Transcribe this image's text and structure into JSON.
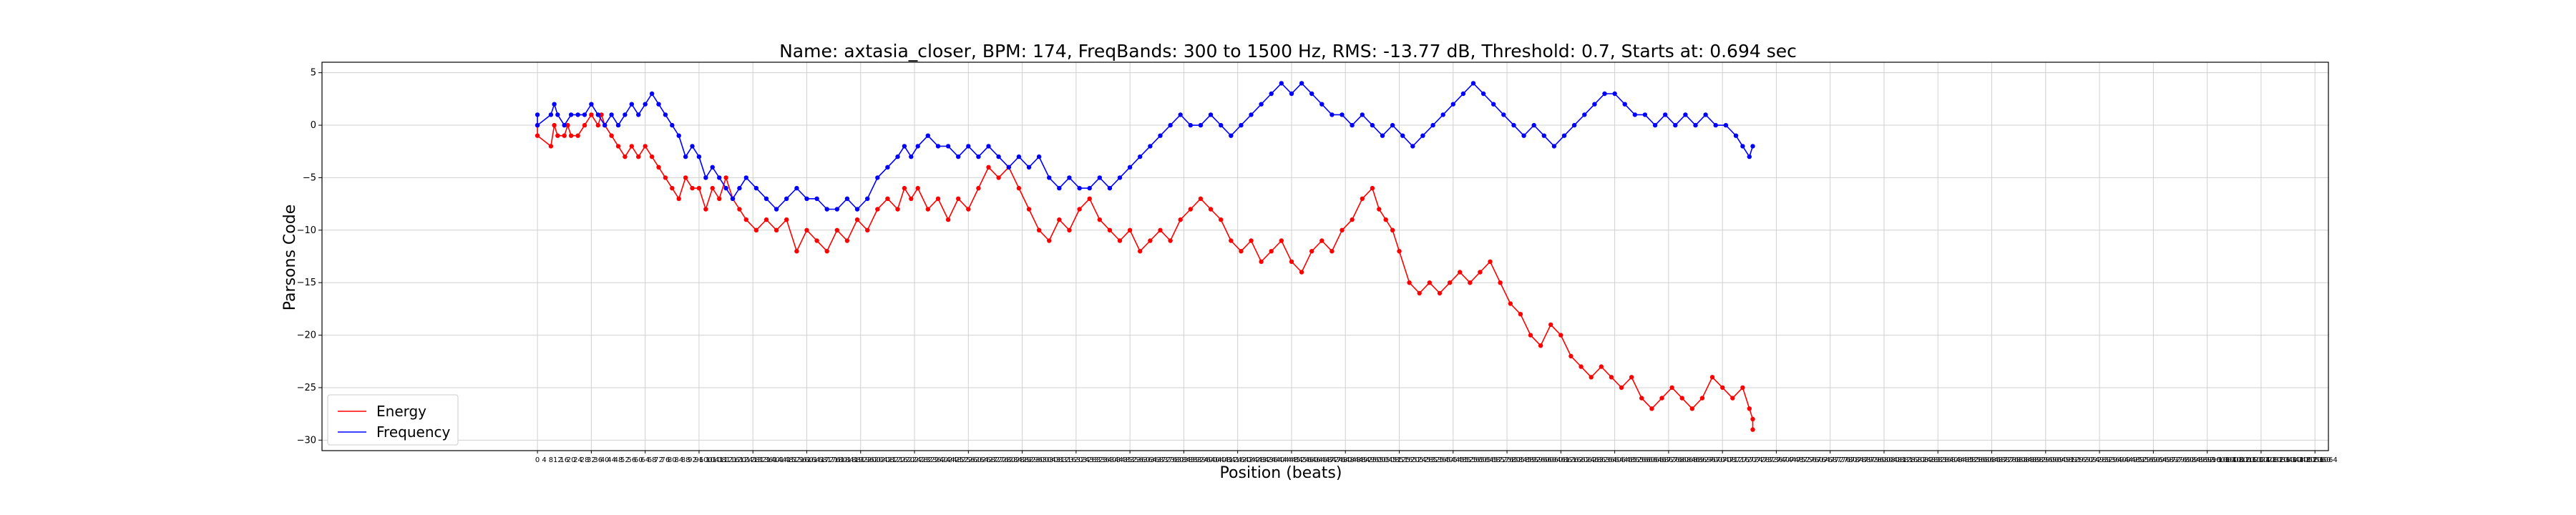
{
  "chart_data": {
    "type": "line",
    "title": "Name: axtasia_closer, BPM: 174, FreqBands: 300 to 1500 Hz, RMS: -13.77 dB, Threshold: 0.7, Starts at: 0.694 sec",
    "xlabel": "Position (beats)",
    "ylabel": "Parsons Code",
    "xlim": [
      -128,
      1064
    ],
    "ylim": [
      -31,
      6
    ],
    "xtick_step": 4,
    "xtick_labels_from": 0,
    "xtick_labels_to": 1064,
    "yticks": [
      5,
      0,
      -5,
      -10,
      -15,
      -20,
      -25,
      -30
    ],
    "grid": true,
    "legend_position": "lower-left",
    "series": [
      {
        "name": "Energy",
        "color": "#ff0000",
        "points": [
          [
            0,
            0
          ],
          [
            0,
            -1
          ],
          [
            8,
            -2
          ],
          [
            10,
            0
          ],
          [
            12,
            -1
          ],
          [
            16,
            -1
          ],
          [
            18,
            0
          ],
          [
            20,
            -1
          ],
          [
            24,
            -1
          ],
          [
            28,
            0
          ],
          [
            32,
            1
          ],
          [
            36,
            0
          ],
          [
            38,
            1
          ],
          [
            40,
            0
          ],
          [
            44,
            -1
          ],
          [
            48,
            -2
          ],
          [
            52,
            -3
          ],
          [
            56,
            -2
          ],
          [
            60,
            -3
          ],
          [
            64,
            -2
          ],
          [
            68,
            -3
          ],
          [
            72,
            -4
          ],
          [
            76,
            -5
          ],
          [
            80,
            -6
          ],
          [
            84,
            -7
          ],
          [
            88,
            -5
          ],
          [
            92,
            -6
          ],
          [
            96,
            -6
          ],
          [
            100,
            -8
          ],
          [
            104,
            -6
          ],
          [
            108,
            -7
          ],
          [
            112,
            -5
          ],
          [
            116,
            -7
          ],
          [
            120,
            -8
          ],
          [
            124,
            -9
          ],
          [
            130,
            -10
          ],
          [
            136,
            -9
          ],
          [
            142,
            -10
          ],
          [
            148,
            -9
          ],
          [
            154,
            -12
          ],
          [
            160,
            -10
          ],
          [
            166,
            -11
          ],
          [
            172,
            -12
          ],
          [
            178,
            -10
          ],
          [
            184,
            -11
          ],
          [
            190,
            -9
          ],
          [
            196,
            -10
          ],
          [
            202,
            -8
          ],
          [
            208,
            -7
          ],
          [
            214,
            -8
          ],
          [
            218,
            -6
          ],
          [
            222,
            -7
          ],
          [
            226,
            -6
          ],
          [
            232,
            -8
          ],
          [
            238,
            -7
          ],
          [
            244,
            -9
          ],
          [
            250,
            -7
          ],
          [
            256,
            -8
          ],
          [
            262,
            -6
          ],
          [
            268,
            -4
          ],
          [
            274,
            -5
          ],
          [
            280,
            -4
          ],
          [
            286,
            -6
          ],
          [
            292,
            -8
          ],
          [
            298,
            -10
          ],
          [
            304,
            -11
          ],
          [
            310,
            -9
          ],
          [
            316,
            -10
          ],
          [
            322,
            -8
          ],
          [
            328,
            -7
          ],
          [
            334,
            -9
          ],
          [
            340,
            -10
          ],
          [
            346,
            -11
          ],
          [
            352,
            -10
          ],
          [
            358,
            -12
          ],
          [
            364,
            -11
          ],
          [
            370,
            -10
          ],
          [
            376,
            -11
          ],
          [
            382,
            -9
          ],
          [
            388,
            -8
          ],
          [
            394,
            -7
          ],
          [
            400,
            -8
          ],
          [
            406,
            -9
          ],
          [
            412,
            -11
          ],
          [
            418,
            -12
          ],
          [
            424,
            -11
          ],
          [
            430,
            -13
          ],
          [
            436,
            -12
          ],
          [
            442,
            -11
          ],
          [
            448,
            -13
          ],
          [
            454,
            -14
          ],
          [
            460,
            -12
          ],
          [
            466,
            -11
          ],
          [
            472,
            -12
          ],
          [
            478,
            -10
          ],
          [
            484,
            -9
          ],
          [
            490,
            -7
          ],
          [
            496,
            -6
          ],
          [
            500,
            -8
          ],
          [
            504,
            -9
          ],
          [
            508,
            -10
          ],
          [
            512,
            -12
          ],
          [
            518,
            -15
          ],
          [
            524,
            -16
          ],
          [
            530,
            -15
          ],
          [
            536,
            -16
          ],
          [
            542,
            -15
          ],
          [
            548,
            -14
          ],
          [
            554,
            -15
          ],
          [
            560,
            -14
          ],
          [
            566,
            -13
          ],
          [
            572,
            -15
          ],
          [
            578,
            -17
          ],
          [
            584,
            -18
          ],
          [
            590,
            -20
          ],
          [
            596,
            -21
          ],
          [
            602,
            -19
          ],
          [
            608,
            -20
          ],
          [
            614,
            -22
          ],
          [
            620,
            -23
          ],
          [
            626,
            -24
          ],
          [
            632,
            -23
          ],
          [
            638,
            -24
          ],
          [
            644,
            -25
          ],
          [
            650,
            -24
          ],
          [
            656,
            -26
          ],
          [
            662,
            -27
          ],
          [
            668,
            -26
          ],
          [
            674,
            -25
          ],
          [
            680,
            -26
          ],
          [
            686,
            -27
          ],
          [
            692,
            -26
          ],
          [
            698,
            -24
          ],
          [
            704,
            -25
          ],
          [
            710,
            -26
          ],
          [
            716,
            -25
          ],
          [
            720,
            -27
          ],
          [
            722,
            -28
          ],
          [
            722,
            -29
          ]
        ]
      },
      {
        "name": "Frequency",
        "color": "#0000ff",
        "points": [
          [
            0,
            1
          ],
          [
            0,
            0
          ],
          [
            8,
            1
          ],
          [
            10,
            2
          ],
          [
            12,
            1
          ],
          [
            16,
            0
          ],
          [
            20,
            1
          ],
          [
            24,
            1
          ],
          [
            28,
            1
          ],
          [
            32,
            2
          ],
          [
            36,
            1
          ],
          [
            40,
            0
          ],
          [
            44,
            1
          ],
          [
            48,
            0
          ],
          [
            52,
            1
          ],
          [
            56,
            2
          ],
          [
            60,
            1
          ],
          [
            64,
            2
          ],
          [
            68,
            3
          ],
          [
            72,
            2
          ],
          [
            76,
            1
          ],
          [
            80,
            0
          ],
          [
            84,
            -1
          ],
          [
            88,
            -3
          ],
          [
            92,
            -2
          ],
          [
            96,
            -3
          ],
          [
            100,
            -5
          ],
          [
            104,
            -4
          ],
          [
            108,
            -5
          ],
          [
            112,
            -6
          ],
          [
            116,
            -7
          ],
          [
            120,
            -6
          ],
          [
            124,
            -5
          ],
          [
            130,
            -6
          ],
          [
            136,
            -7
          ],
          [
            142,
            -8
          ],
          [
            148,
            -7
          ],
          [
            154,
            -6
          ],
          [
            160,
            -7
          ],
          [
            166,
            -7
          ],
          [
            172,
            -8
          ],
          [
            178,
            -8
          ],
          [
            184,
            -7
          ],
          [
            190,
            -8
          ],
          [
            196,
            -7
          ],
          [
            202,
            -5
          ],
          [
            208,
            -4
          ],
          [
            214,
            -3
          ],
          [
            218,
            -2
          ],
          [
            222,
            -3
          ],
          [
            226,
            -2
          ],
          [
            232,
            -1
          ],
          [
            238,
            -2
          ],
          [
            244,
            -2
          ],
          [
            250,
            -3
          ],
          [
            256,
            -2
          ],
          [
            262,
            -3
          ],
          [
            268,
            -2
          ],
          [
            274,
            -3
          ],
          [
            280,
            -4
          ],
          [
            286,
            -3
          ],
          [
            292,
            -4
          ],
          [
            298,
            -3
          ],
          [
            304,
            -5
          ],
          [
            310,
            -6
          ],
          [
            316,
            -5
          ],
          [
            322,
            -6
          ],
          [
            328,
            -6
          ],
          [
            334,
            -5
          ],
          [
            340,
            -6
          ],
          [
            346,
            -5
          ],
          [
            352,
            -4
          ],
          [
            358,
            -3
          ],
          [
            364,
            -2
          ],
          [
            370,
            -1
          ],
          [
            376,
            0
          ],
          [
            382,
            1
          ],
          [
            388,
            0
          ],
          [
            394,
            0
          ],
          [
            400,
            1
          ],
          [
            406,
            0
          ],
          [
            412,
            -1
          ],
          [
            418,
            0
          ],
          [
            424,
            1
          ],
          [
            430,
            2
          ],
          [
            436,
            3
          ],
          [
            442,
            4
          ],
          [
            448,
            3
          ],
          [
            454,
            4
          ],
          [
            460,
            3
          ],
          [
            466,
            2
          ],
          [
            472,
            1
          ],
          [
            478,
            1
          ],
          [
            484,
            0
          ],
          [
            490,
            1
          ],
          [
            496,
            0
          ],
          [
            502,
            -1
          ],
          [
            508,
            0
          ],
          [
            514,
            -1
          ],
          [
            520,
            -2
          ],
          [
            526,
            -1
          ],
          [
            532,
            0
          ],
          [
            538,
            1
          ],
          [
            544,
            2
          ],
          [
            550,
            3
          ],
          [
            556,
            4
          ],
          [
            562,
            3
          ],
          [
            568,
            2
          ],
          [
            574,
            1
          ],
          [
            580,
            0
          ],
          [
            586,
            -1
          ],
          [
            592,
            0
          ],
          [
            598,
            -1
          ],
          [
            604,
            -2
          ],
          [
            610,
            -1
          ],
          [
            616,
            0
          ],
          [
            622,
            1
          ],
          [
            628,
            2
          ],
          [
            634,
            3
          ],
          [
            640,
            3
          ],
          [
            646,
            2
          ],
          [
            652,
            1
          ],
          [
            658,
            1
          ],
          [
            664,
            0
          ],
          [
            670,
            1
          ],
          [
            676,
            0
          ],
          [
            682,
            1
          ],
          [
            688,
            0
          ],
          [
            694,
            1
          ],
          [
            700,
            0
          ],
          [
            706,
            0
          ],
          [
            712,
            -1
          ],
          [
            716,
            -2
          ],
          [
            720,
            -3
          ],
          [
            722,
            -2
          ]
        ]
      }
    ]
  }
}
